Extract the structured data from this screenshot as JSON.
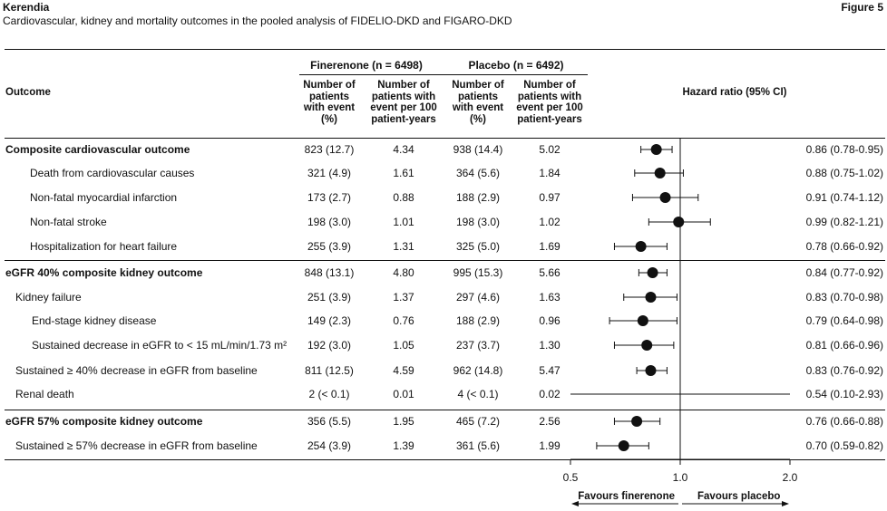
{
  "page": {
    "brand": "Kerendia",
    "figure_label": "Figure 5",
    "subtitle": "Cardiovascular, kidney and mortality outcomes in the pooled analysis of FIDELIO-DKD and FIGARO-DKD"
  },
  "table": {
    "outcome_header": "Outcome",
    "finerenone_header": "Finerenone (n = 6498)",
    "placebo_header": "Placebo (n = 6492)",
    "col_event_header": "Number of patients with event (%)",
    "col_rate_header": "Number of patients with event per 100 patient-years",
    "hr_header": "Hazard ratio (95% CI)",
    "rows": [
      {
        "label": "Composite cardiovascular outcome",
        "fin_n": "823 (12.7)",
        "fin_rate": "4.34",
        "pla_n": "938 (14.4)",
        "pla_rate": "5.02",
        "hr_text": "0.86 (0.78-0.95)"
      },
      {
        "label": "Death from cardiovascular causes",
        "fin_n": "321 (4.9)",
        "fin_rate": "1.61",
        "pla_n": "364 (5.6)",
        "pla_rate": "1.84",
        "hr_text": "0.88 (0.75-1.02)"
      },
      {
        "label": "Non-fatal myocardial infarction",
        "fin_n": "173 (2.7)",
        "fin_rate": "0.88",
        "pla_n": "188 (2.9)",
        "pla_rate": "0.97",
        "hr_text": "0.91 (0.74-1.12)"
      },
      {
        "label": "Non-fatal stroke",
        "fin_n": "198 (3.0)",
        "fin_rate": "1.01",
        "pla_n": "198 (3.0)",
        "pla_rate": "1.02",
        "hr_text": "0.99 (0.82-1.21)"
      },
      {
        "label": "Hospitalization for heart failure",
        "fin_n": "255 (3.9)",
        "fin_rate": "1.31",
        "pla_n": "325 (5.0)",
        "pla_rate": "1.69",
        "hr_text": "0.78 (0.66-0.92)"
      },
      {
        "label": "eGFR 40% composite kidney outcome",
        "fin_n": "848 (13.1)",
        "fin_rate": "4.80",
        "pla_n": "995 (15.3)",
        "pla_rate": "5.66",
        "hr_text": "0.84 (0.77-0.92)"
      },
      {
        "label": "Kidney failure",
        "fin_n": "251 (3.9)",
        "fin_rate": "1.37",
        "pla_n": "297 (4.6)",
        "pla_rate": "1.63",
        "hr_text": "0.83 (0.70-0.98)"
      },
      {
        "label": "End-stage kidney disease",
        "fin_n": "149 (2.3)",
        "fin_rate": "0.76",
        "pla_n": "188 (2.9)",
        "pla_rate": "0.96",
        "hr_text": "0.79 (0.64-0.98)"
      },
      {
        "label": "Sustained decrease in eGFR to < 15 mL/min/1.73 m²",
        "fin_n": "192 (3.0)",
        "fin_rate": "1.05",
        "pla_n": "237 (3.7)",
        "pla_rate": "1.30",
        "hr_text": "0.81 (0.66-0.96)"
      },
      {
        "label": "Sustained ≥ 40% decrease in eGFR from baseline",
        "fin_n": "811 (12.5)",
        "fin_rate": "4.59",
        "pla_n": "962 (14.8)",
        "pla_rate": "5.47",
        "hr_text": "0.83 (0.76-0.92)"
      },
      {
        "label": "Renal death",
        "fin_n": "2 (< 0.1)",
        "fin_rate": "0.01",
        "pla_n": "4 (< 0.1)",
        "pla_rate": "0.02",
        "hr_text": "0.54 (0.10-2.93)"
      },
      {
        "label": "eGFR 57% composite kidney outcome",
        "fin_n": "356 (5.5)",
        "fin_rate": "1.95",
        "pla_n": "465 (7.2)",
        "pla_rate": "2.56",
        "hr_text": "0.76 (0.66-0.88)"
      },
      {
        "label": "Sustained ≥ 57% decrease in eGFR from baseline",
        "fin_n": "254 (3.9)",
        "fin_rate": "1.39",
        "pla_n": "361 (5.6)",
        "pla_rate": "1.99",
        "hr_text": "0.70 (0.59-0.82)"
      }
    ]
  },
  "chart_data": {
    "type": "forest",
    "title": "Hazard ratio (95% CI)",
    "x_scale": "log",
    "xlim": [
      0.5,
      2.0
    ],
    "xticks": [
      "0.5",
      "1.0",
      "2.0"
    ],
    "reference_line": 1.0,
    "favours_left": "Favours finerenone",
    "favours_right": "Favours placebo",
    "categories": [
      "Composite cardiovascular outcome",
      "Death from cardiovascular causes",
      "Non-fatal myocardial infarction",
      "Non-fatal stroke",
      "Hospitalization for heart failure",
      "eGFR 40% composite kidney outcome",
      "Kidney failure",
      "End-stage kidney disease",
      "Sustained decrease in eGFR to < 15 mL/min/1.73 m²",
      "Sustained ≥ 40% decrease in eGFR from baseline",
      "Renal death",
      "eGFR 57% composite kidney outcome",
      "Sustained ≥ 57% decrease in eGFR from baseline"
    ],
    "hr": [
      0.86,
      0.88,
      0.91,
      0.99,
      0.78,
      0.84,
      0.83,
      0.79,
      0.81,
      0.83,
      0.54,
      0.76,
      0.7
    ],
    "ci_low": [
      0.78,
      0.75,
      0.74,
      0.82,
      0.66,
      0.77,
      0.7,
      0.64,
      0.66,
      0.76,
      0.1,
      0.66,
      0.59
    ],
    "ci_high": [
      0.95,
      1.02,
      1.12,
      1.21,
      0.92,
      0.92,
      0.98,
      0.98,
      0.96,
      0.92,
      2.93,
      0.88,
      0.82
    ]
  }
}
